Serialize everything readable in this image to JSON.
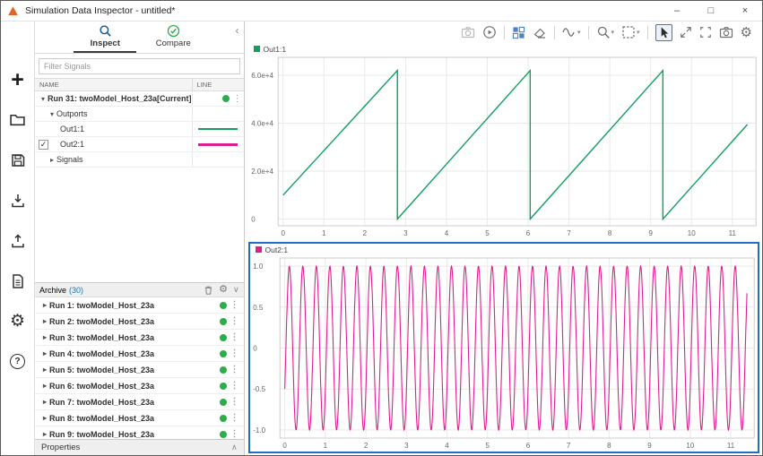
{
  "window": {
    "title": "Simulation Data Inspector - untitled*",
    "controls": {
      "minimize": "–",
      "maximize": "□",
      "close": "×"
    }
  },
  "icons": {
    "plus": "+",
    "gear": "⚙",
    "help": "?",
    "caret_down": "▾",
    "caret_right": "▸",
    "kebab": "⋮",
    "collapse": "‹",
    "chevron_up": "∧",
    "chevron_down": "∨",
    "check": "✓",
    "dropdown": "▾"
  },
  "inspect_panel": {
    "tabs": [
      {
        "label": "Inspect",
        "active": true
      },
      {
        "label": "Compare",
        "active": false
      }
    ],
    "filter_placeholder": "Filter Signals",
    "columns": [
      "NAME",
      "LINE"
    ],
    "tree": {
      "run": {
        "label": "Run 31: twoModel_Host_23a[Current]",
        "status_color": "#2eab4a"
      },
      "outports_label": "Outports",
      "signals": [
        {
          "label": "Out1:1",
          "checked": false,
          "color": "#0fa05c"
        },
        {
          "label": "Out2:1",
          "checked": true,
          "color": "#dd1f8d"
        }
      ],
      "signals_group_label": "Signals"
    }
  },
  "archive": {
    "title": "Archive",
    "count": "(30)",
    "runs": [
      "Run 1: twoModel_Host_23a",
      "Run 2: twoModel_Host_23a",
      "Run 3: twoModel_Host_23a",
      "Run 4: twoModel_Host_23a",
      "Run 5: twoModel_Host_23a",
      "Run 6: twoModel_Host_23a",
      "Run 7: twoModel_Host_23a",
      "Run 8: twoModel_Host_23a",
      "Run 9: twoModel_Host_23a"
    ],
    "run_status_color": "#2eab4a"
  },
  "properties": {
    "label": "Properties"
  },
  "plot_toolbar": {
    "buttons": [
      "record",
      "replay",
      "layout",
      "clear-plots",
      "signal-trace",
      "zoom",
      "fit-to-view",
      "pointer",
      "maximize",
      "fullscreen",
      "snapshot",
      "settings"
    ],
    "active_tool": "pointer",
    "accent_color": "#2e7cd6"
  },
  "chart_data": [
    {
      "type": "line",
      "title": "Out1:1",
      "selected": false,
      "xlim": [
        -0.12,
        11.58
      ],
      "ylim": [
        -2800,
        67500
      ],
      "xticks": [
        0,
        1,
        2,
        3,
        4,
        5,
        6,
        7,
        8,
        9,
        10,
        11
      ],
      "yticks": [
        {
          "value": 0,
          "label": "0"
        },
        {
          "value": 20000,
          "label": "2.0e+4"
        },
        {
          "value": 40000,
          "label": "4.0e+4"
        },
        {
          "value": 60000,
          "label": "6.0e+4"
        }
      ],
      "grid": true,
      "legend_position": "top-left",
      "series": [
        {
          "name": "Out1:1",
          "color": "#0fa05c",
          "stroke_width": 1.4,
          "shape": "sawtooth",
          "points": [
            [
              0,
              10000
            ],
            [
              2.8,
              62000
            ],
            [
              2.8,
              0
            ],
            [
              6.05,
              62000
            ],
            [
              6.05,
              0
            ],
            [
              9.3,
              62000
            ],
            [
              9.3,
              0
            ],
            [
              11.37,
              39500
            ]
          ]
        }
      ]
    },
    {
      "type": "line",
      "title": "Out2:1",
      "selected": true,
      "xlim": [
        -0.12,
        11.58
      ],
      "ylim": [
        -1.1,
        1.1
      ],
      "xticks": [
        0,
        1,
        2,
        3,
        4,
        5,
        6,
        7,
        8,
        9,
        10,
        11
      ],
      "yticks": [
        {
          "value": 1,
          "label": "1.0"
        },
        {
          "value": 0.5,
          "label": "0.5"
        },
        {
          "value": 0,
          "label": "0"
        },
        {
          "value": -0.5,
          "label": "-0.5"
        },
        {
          "value": -1,
          "label": "-1.0"
        }
      ],
      "grid": true,
      "legend_position": "top-left",
      "series": [
        {
          "name": "Out2:1",
          "color": "#dd1f8d",
          "stroke_width": 1.1,
          "shape": "sine",
          "generator": {
            "kind": "sine",
            "amplitude": 1,
            "frequency": 3,
            "phase": -0.5236,
            "x_start": 0,
            "x_end": 11.4
          }
        }
      ]
    }
  ]
}
